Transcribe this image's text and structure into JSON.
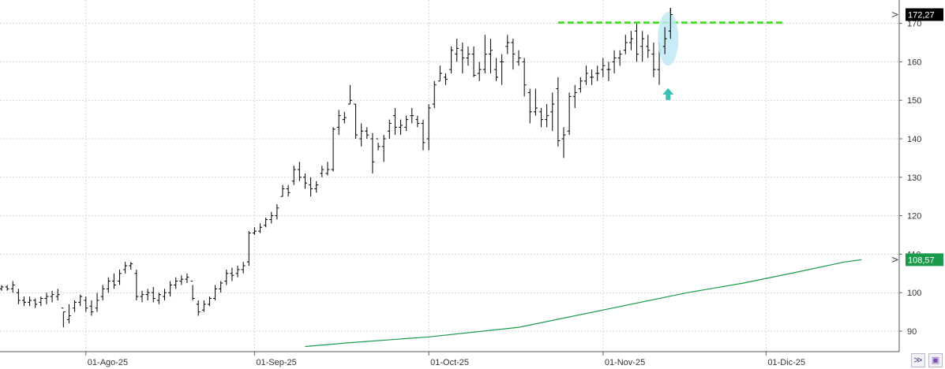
{
  "chart_data": {
    "type": "ohlc",
    "title": "",
    "xlabel": "",
    "ylabel": "",
    "ylim": [
      85,
      175
    ],
    "y_ticks": [
      "90",
      "100",
      "110",
      "120",
      "130",
      "140",
      "150",
      "160",
      "170"
    ],
    "x_ticks": [
      {
        "label": "01-Ago-25",
        "i": 15
      },
      {
        "label": "01-Sep-25",
        "i": 45
      },
      {
        "label": "01-Oct-25",
        "i": 76
      },
      {
        "label": "01-Nov-25",
        "i": 107
      },
      {
        "label": "01-Dic-25",
        "i": 136
      }
    ],
    "grid": true,
    "price_axis_side": "right",
    "last_price_label": "172,27",
    "ma_label": "108,57",
    "colors": {
      "bars": "#000000",
      "ma": "#1a9a4a",
      "resistance": "#33dd11",
      "highlight": "#bfe9f5",
      "arrow": "#3bbfb5",
      "ma_label_bg": "#1a9a4a",
      "price_label_bg": "#000000"
    },
    "series": [
      {
        "kind": "ohlc",
        "bars": [
          [
            0,
            101,
            102,
            100.5,
            101.5
          ],
          [
            1,
            101.5,
            102,
            100.5,
            101
          ],
          [
            2,
            101,
            103,
            100,
            102
          ],
          [
            3,
            100,
            101,
            97,
            98
          ],
          [
            4,
            98,
            99,
            96.5,
            97.5
          ],
          [
            5,
            97.5,
            99,
            96.5,
            98
          ],
          [
            6,
            98,
            98.5,
            96,
            97
          ],
          [
            7,
            97.5,
            99,
            96.5,
            98.5
          ],
          [
            8,
            98.5,
            100,
            97,
            99
          ],
          [
            9,
            99,
            100.5,
            97.5,
            99.5
          ],
          [
            10,
            99,
            101,
            98,
            99.5
          ],
          [
            11,
            96,
            95,
            91,
            95
          ],
          [
            12,
            93,
            97,
            92,
            94
          ],
          [
            13,
            96,
            98,
            95,
            97.5
          ],
          [
            14,
            97.5,
            99.5,
            96.5,
            99
          ],
          [
            15,
            98,
            99,
            95,
            96
          ],
          [
            16,
            96.5,
            98,
            94,
            95
          ],
          [
            17,
            96,
            100,
            95,
            98
          ],
          [
            18,
            99,
            102,
            98,
            101
          ],
          [
            19,
            101,
            104,
            100,
            103
          ],
          [
            20,
            103,
            105,
            101,
            102
          ],
          [
            21,
            103,
            106,
            102,
            105
          ],
          [
            22,
            106,
            108,
            105,
            107
          ],
          [
            23,
            107,
            108,
            106,
            107.5
          ],
          [
            24,
            105,
            106,
            98,
            99
          ],
          [
            25,
            99,
            100.5,
            97.5,
            99.5
          ],
          [
            26,
            99.5,
            101,
            98,
            100
          ],
          [
            27,
            100,
            101.5,
            97.5,
            98.5
          ],
          [
            28,
            98,
            100,
            97,
            99.5
          ],
          [
            29,
            99,
            101,
            98,
            100
          ],
          [
            30,
            100,
            103,
            99,
            102
          ],
          [
            31,
            102,
            104,
            101,
            103
          ],
          [
            32,
            103,
            104.5,
            102,
            103.5
          ],
          [
            33,
            103.5,
            105,
            102.5,
            104
          ],
          [
            34,
            103,
            102,
            98,
            98.5
          ],
          [
            35,
            97,
            98,
            94,
            95
          ],
          [
            36,
            95.5,
            98,
            95,
            97
          ],
          [
            37,
            97,
            99,
            96.5,
            98.5
          ],
          [
            38,
            98.5,
            102,
            98,
            101
          ],
          [
            39,
            101,
            103,
            100,
            102.5
          ],
          [
            40,
            103,
            106,
            102,
            105
          ],
          [
            41,
            105,
            106.5,
            103,
            104.5
          ],
          [
            42,
            105,
            107,
            104,
            106
          ],
          [
            43,
            106,
            108,
            105,
            107
          ],
          [
            44,
            108,
            116,
            107,
            115.5
          ],
          [
            45,
            115.5,
            117,
            115,
            116
          ],
          [
            46,
            116,
            118,
            115.5,
            117
          ],
          [
            47,
            117.5,
            119.5,
            117,
            119
          ],
          [
            48,
            119,
            121,
            118,
            120
          ],
          [
            49,
            120,
            123,
            119,
            122
          ],
          [
            50,
            125,
            128,
            125,
            127
          ],
          [
            51,
            127,
            128,
            125,
            126
          ],
          [
            52,
            129,
            133,
            128,
            132
          ],
          [
            53,
            132,
            134,
            129,
            130
          ],
          [
            54,
            130,
            131,
            127,
            128.5
          ],
          [
            55,
            128,
            130,
            125,
            127
          ],
          [
            56,
            127,
            129,
            126,
            128
          ],
          [
            57,
            131,
            133,
            130,
            132
          ],
          [
            58,
            131,
            134,
            130.5,
            132
          ],
          [
            59,
            132,
            143,
            131.5,
            142.5
          ],
          [
            60,
            143,
            147.5,
            141,
            146
          ],
          [
            61,
            145,
            147,
            144,
            145.5
          ],
          [
            62,
            149,
            154,
            149,
            150
          ],
          [
            63,
            149,
            149,
            140,
            141
          ],
          [
            64,
            140,
            144,
            138,
            142
          ],
          [
            65,
            142,
            143,
            140,
            141
          ],
          [
            66,
            140,
            141.5,
            131,
            134
          ],
          [
            67,
            140,
            139,
            137,
            138
          ],
          [
            68,
            138,
            141,
            134,
            140
          ],
          [
            69,
            142,
            145,
            140,
            144
          ],
          [
            70,
            146,
            148,
            141,
            143
          ],
          [
            71,
            143,
            145,
            141,
            143.5
          ],
          [
            72,
            143,
            146,
            142,
            145
          ],
          [
            73,
            146,
            148,
            144,
            146
          ],
          [
            74,
            145,
            146,
            143,
            144
          ],
          [
            75,
            144,
            145,
            137,
            139
          ],
          [
            76,
            140,
            149,
            137,
            148
          ],
          [
            77,
            149,
            155,
            148,
            154
          ],
          [
            78,
            155,
            159,
            155,
            157
          ],
          [
            79,
            156,
            157,
            154,
            155.5
          ],
          [
            80,
            158,
            164,
            157,
            163
          ],
          [
            81,
            162,
            166,
            160,
            163.5
          ],
          [
            82,
            163,
            165,
            157,
            161
          ],
          [
            83,
            161,
            164,
            159,
            162
          ],
          [
            84,
            162,
            164,
            156,
            156.5
          ],
          [
            85,
            157,
            160,
            155,
            158
          ],
          [
            86,
            158,
            167,
            157,
            162
          ],
          [
            87,
            162,
            166,
            157,
            163
          ],
          [
            88,
            158,
            161,
            155,
            156
          ],
          [
            89,
            160,
            162,
            154,
            160
          ],
          [
            90,
            164,
            167,
            162,
            165
          ],
          [
            91,
            165,
            166,
            158,
            162
          ],
          [
            92,
            160,
            163,
            159,
            161
          ],
          [
            93,
            160,
            161,
            151,
            154
          ],
          [
            94,
            152,
            153,
            144,
            147
          ],
          [
            95,
            147,
            153,
            146,
            148
          ],
          [
            96,
            147,
            148,
            143,
            145
          ],
          [
            97,
            145,
            149,
            143,
            146
          ],
          [
            98,
            147,
            152,
            142,
            149
          ],
          [
            99,
            153,
            156,
            138,
            139.5
          ],
          [
            100,
            140,
            143,
            135,
            141
          ],
          [
            101,
            142,
            152,
            141,
            151
          ],
          [
            102,
            151,
            154,
            148,
            152
          ],
          [
            103,
            153,
            156,
            152,
            155
          ],
          [
            104,
            155,
            159,
            154,
            157
          ],
          [
            105,
            156,
            158,
            154,
            156
          ],
          [
            106,
            157,
            159,
            155,
            157
          ],
          [
            107,
            158,
            161,
            156,
            159
          ],
          [
            108,
            158,
            160,
            155,
            158
          ],
          [
            109,
            160,
            163,
            157,
            161
          ],
          [
            110,
            161,
            163,
            159,
            162
          ],
          [
            111,
            163,
            167,
            162,
            165
          ],
          [
            112,
            165,
            168,
            163,
            166
          ],
          [
            113,
            168,
            170,
            160,
            162
          ],
          [
            114,
            164,
            168,
            160,
            166
          ],
          [
            115,
            164,
            167,
            161,
            163
          ],
          [
            116,
            162,
            165,
            156,
            158
          ],
          [
            117,
            158,
            165,
            154,
            163
          ],
          [
            118,
            164,
            169,
            162,
            166
          ],
          [
            119,
            168,
            174,
            166,
            172.27
          ]
        ]
      },
      {
        "kind": "line",
        "values": [
          [
            54,
            86
          ],
          [
            62,
            87
          ],
          [
            76,
            88.5
          ],
          [
            92,
            91
          ],
          [
            107,
            95.5
          ],
          [
            122,
            100
          ],
          [
            132,
            102.5
          ],
          [
            142,
            105.5
          ],
          [
            150,
            108
          ],
          [
            153,
            108.57
          ]
        ]
      },
      {
        "kind": "hline",
        "y": 170.2,
        "from": 99,
        "to": 139
      }
    ]
  },
  "ui": {
    "scroll_glyph": "≫",
    "save_glyph": "▣"
  }
}
